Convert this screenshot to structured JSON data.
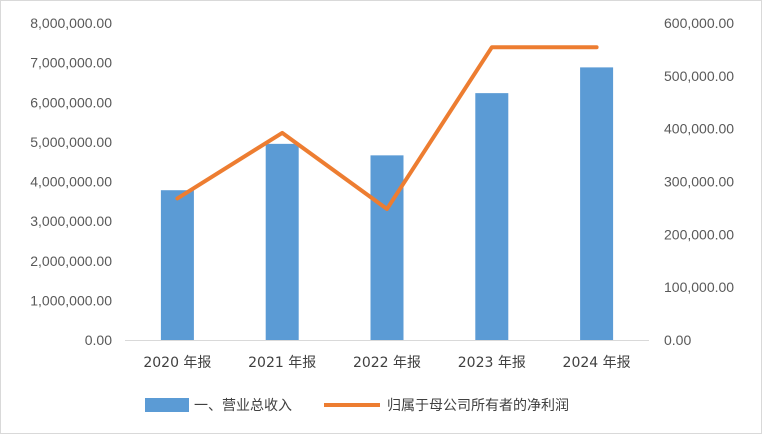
{
  "chart_data": {
    "type": "bar+line",
    "categories": [
      "2020 年报",
      "2021 年报",
      "2022 年报",
      "2023 年报",
      "2024 年报"
    ],
    "series": [
      {
        "name": "一、营业总收入",
        "type": "bar",
        "axis": "left",
        "color": "#5b9bd5",
        "values": [
          3780000,
          4950000,
          4660000,
          6230000,
          6880000
        ]
      },
      {
        "name": "归属于母公司所有者的净利润",
        "type": "line",
        "axis": "right",
        "color": "#ed7d31",
        "values": [
          268000,
          392000,
          248000,
          554000,
          554000
        ]
      }
    ],
    "y_left": {
      "min": 0,
      "max": 8000000,
      "step": 1000000,
      "tick_labels": [
        "0.00",
        "1,000,000.00",
        "2,000,000.00",
        "3,000,000.00",
        "4,000,000.00",
        "5,000,000.00",
        "6,000,000.00",
        "7,000,000.00",
        "8,000,000.00"
      ]
    },
    "y_right": {
      "min": 0,
      "max": 600000,
      "step": 100000,
      "tick_labels": [
        "0.00",
        "100,000.00",
        "200,000.00",
        "300,000.00",
        "400,000.00",
        "500,000.00",
        "600,000.00"
      ]
    },
    "grid": false,
    "legend": "bottom"
  }
}
